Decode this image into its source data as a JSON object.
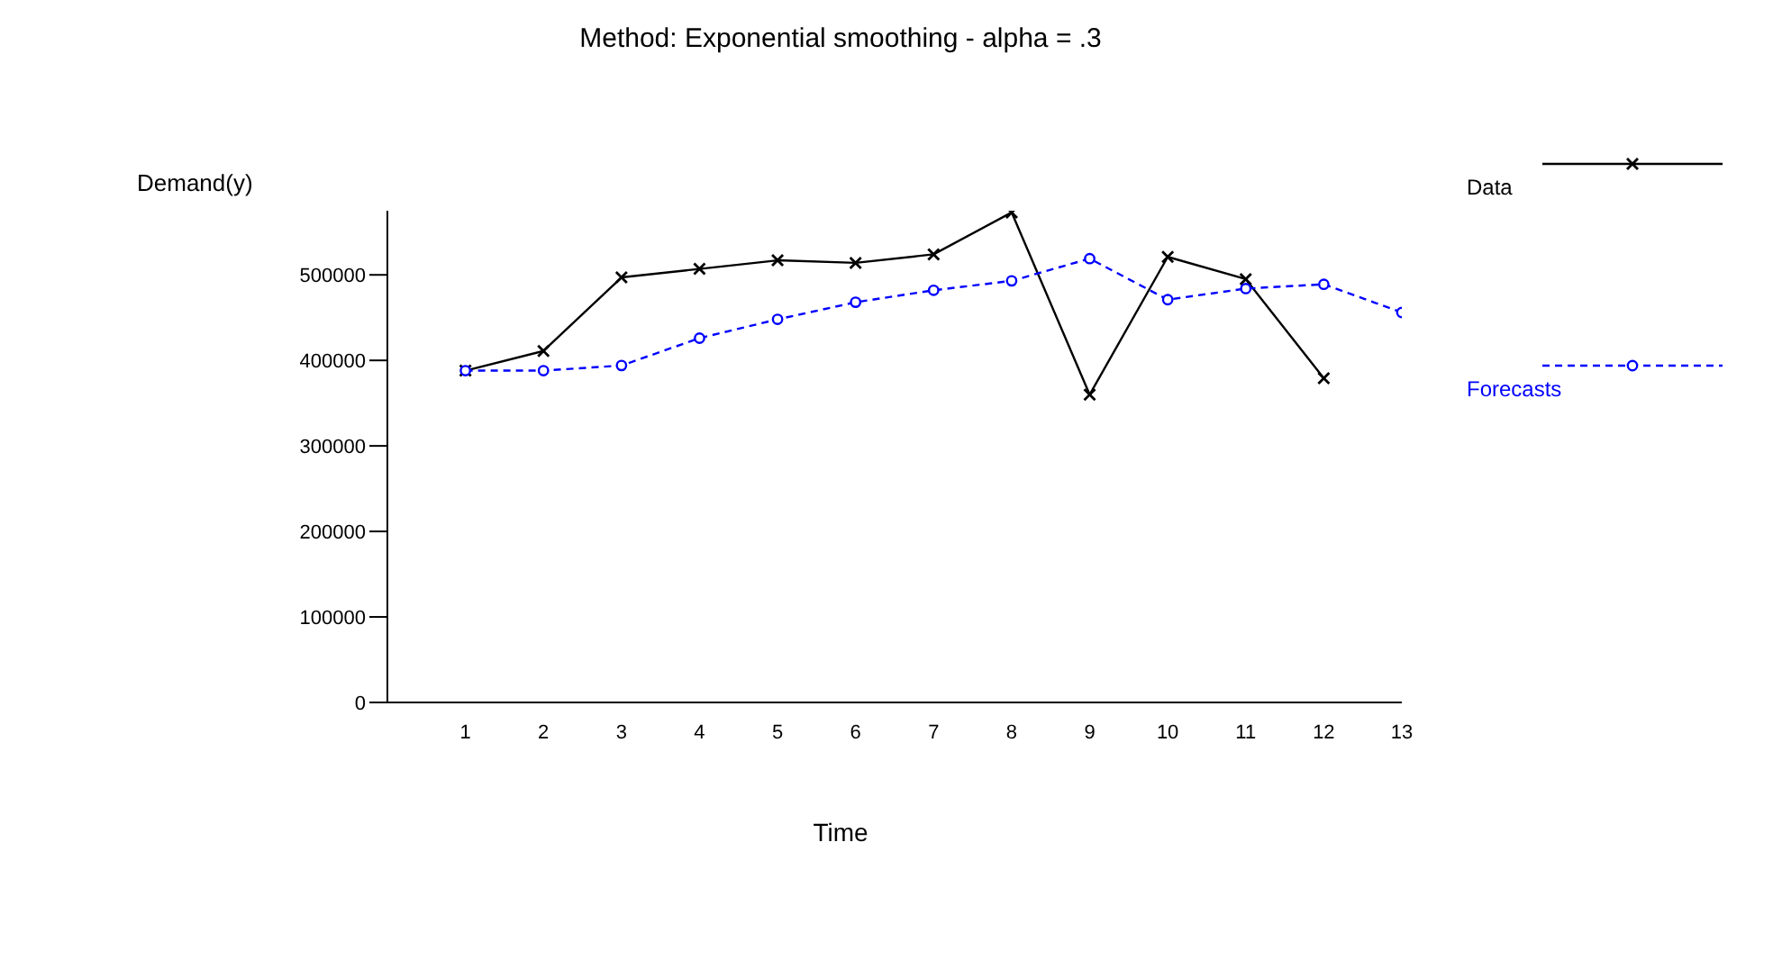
{
  "chart_data": {
    "type": "line",
    "title": "Method: Exponential smoothing - alpha = .3",
    "xlabel": "Time",
    "ylabel": "Demand(y)",
    "x": [
      1,
      2,
      3,
      4,
      5,
      6,
      7,
      8,
      9,
      10,
      11,
      12,
      13
    ],
    "series": [
      {
        "name": "Data",
        "color": "#000000",
        "marker": "cross",
        "line_style": "solid",
        "values": [
          388000,
          411000,
          497000,
          507000,
          517000,
          514000,
          524000,
          573000,
          360000,
          521000,
          495000,
          379000,
          null
        ]
      },
      {
        "name": "Forecasts",
        "color": "#0000ff",
        "marker": "circle",
        "line_style": "dashed",
        "values": [
          388000,
          388000,
          394000,
          426000,
          448000,
          468000,
          482000,
          493000,
          519000,
          471000,
          484000,
          489000,
          456000
        ]
      }
    ],
    "xlim": [
      0,
      13
    ],
    "xticks": [
      1,
      2,
      3,
      4,
      5,
      6,
      7,
      8,
      9,
      10,
      11,
      12,
      13
    ],
    "ylim": [
      0,
      575000
    ],
    "yticks": [
      0,
      100000,
      200000,
      300000,
      400000,
      500000
    ],
    "grid": false,
    "legend": "right"
  }
}
